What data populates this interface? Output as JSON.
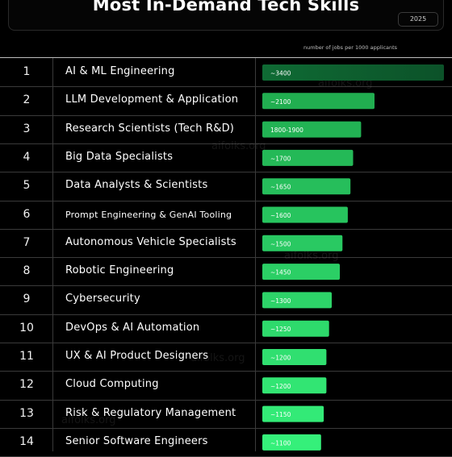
{
  "header": {
    "title": "Most In-Demand Tech Skills",
    "year": "2025"
  },
  "note": "number of jobs per 1000 applicants",
  "watermark": "aifolks.org",
  "colors": {
    "bar_dark": "#0d5a2c",
    "bar_mid": "#1fa84d",
    "bar_light": "#35f07a",
    "grid": "#3a3a3a"
  },
  "chart_data": {
    "type": "bar",
    "title": "Most In-Demand Tech Skills",
    "xlabel": "number of jobs per 1000 applicants",
    "ylabel": "",
    "ranks": [
      "1",
      "2",
      "3",
      "4",
      "5",
      "6",
      "7",
      "8",
      "9",
      "10",
      "11",
      "12",
      "13",
      "14"
    ],
    "categories": [
      "AI & ML Engineering",
      "LLM Development & Application",
      "Research Scientists (Tech R&D)",
      "Big Data Specialists",
      "Data Analysts & Scientists",
      "Prompt Engineering & GenAI Tooling",
      "Autonomous Vehicle Specialists",
      "Robotic Engineering",
      "Cybersecurity",
      "DevOps & AI Automation",
      "UX & AI Product Designers",
      "Cloud Computing",
      "Risk & Regulatory Management",
      "Senior Software Engineers"
    ],
    "values": [
      3400,
      2100,
      1850,
      1700,
      1650,
      1600,
      1500,
      1450,
      1300,
      1250,
      1200,
      1200,
      1150,
      1100
    ],
    "value_labels": [
      "~3400",
      "~2100",
      "1800-1900",
      "~1700",
      "~1650",
      "~1600",
      "~1500",
      "~1450",
      "~1300",
      "~1250",
      "~1200",
      "~1200",
      "~1150",
      "~1100"
    ],
    "xlim": [
      0,
      3400
    ]
  }
}
